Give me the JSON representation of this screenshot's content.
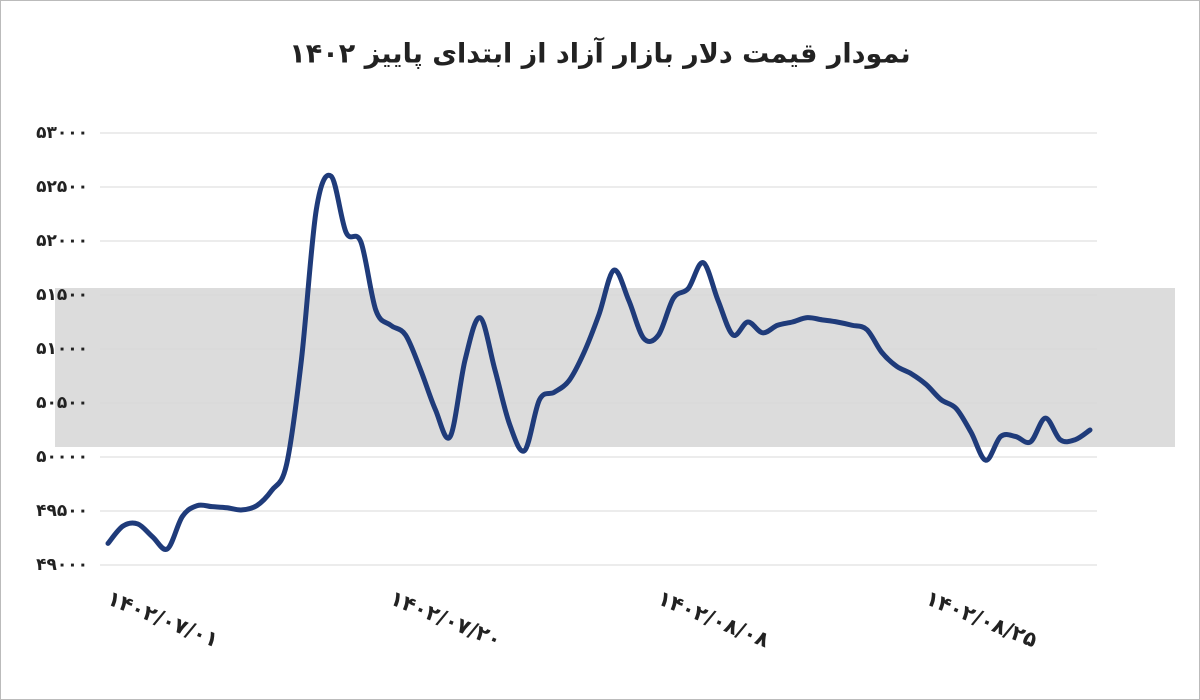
{
  "chart_data": {
    "type": "line",
    "title": "نمودار قیمت دلار بازار آزاد از ابتدای پاییز ۱۴۰۲",
    "categories": [
      "۱۴۰۲/۰۷/۰۱",
      null,
      null,
      null,
      null,
      null,
      null,
      null,
      null,
      null,
      null,
      null,
      null,
      null,
      null,
      null,
      null,
      null,
      null,
      "۱۴۰۲/۰۷/۲۰",
      null,
      null,
      null,
      null,
      null,
      null,
      null,
      null,
      null,
      null,
      null,
      null,
      null,
      null,
      null,
      null,
      null,
      "۱۴۰۲/۰۸/۰۸",
      null,
      null,
      null,
      null,
      null,
      null,
      null,
      null,
      null,
      null,
      null,
      null,
      null,
      null,
      null,
      null,
      null,
      "۱۴۰۲/۰۸/۲۵",
      null,
      null,
      null,
      null,
      null,
      null,
      null,
      null,
      null,
      null,
      null
    ],
    "series": [
      {
        "color": "#1f3b7a",
        "values": [
          49200,
          49360,
          49380,
          49260,
          49150,
          49450,
          49550,
          49540,
          49530,
          49510,
          49550,
          49690,
          49930,
          50900,
          52290,
          52600,
          52080,
          51990,
          51360,
          51220,
          51130,
          50810,
          50440,
          50190,
          50900,
          51290,
          50810,
          50300,
          50060,
          50530,
          50600,
          50710,
          50970,
          51320,
          51730,
          51450,
          51100,
          51130,
          51470,
          51560,
          51800,
          51450,
          51130,
          51250,
          51150,
          51220,
          51250,
          51290,
          51270,
          51250,
          51220,
          51180,
          50970,
          50840,
          50770,
          50670,
          50530,
          50450,
          50230,
          49970,
          50190,
          50190,
          50140,
          50360,
          50160,
          50160,
          50250
        ]
      }
    ],
    "ylim": [
      49000,
      53000
    ],
    "yticks": [
      {
        "value": 49000,
        "label": "۴۹۰۰۰"
      },
      {
        "value": 49500,
        "label": "۴۹۵۰۰"
      },
      {
        "value": 50000,
        "label": "۵۰۰۰۰"
      },
      {
        "value": 50500,
        "label": "۵۰۵۰۰"
      },
      {
        "value": 51000,
        "label": "۵۱۰۰۰"
      },
      {
        "value": 51500,
        "label": "۵۱۵۰۰"
      },
      {
        "value": 52000,
        "label": "۵۲۰۰۰"
      },
      {
        "value": 52500,
        "label": "۵۲۵۰۰"
      },
      {
        "value": 53000,
        "label": "۵۳۰۰۰"
      }
    ],
    "grid": true
  }
}
